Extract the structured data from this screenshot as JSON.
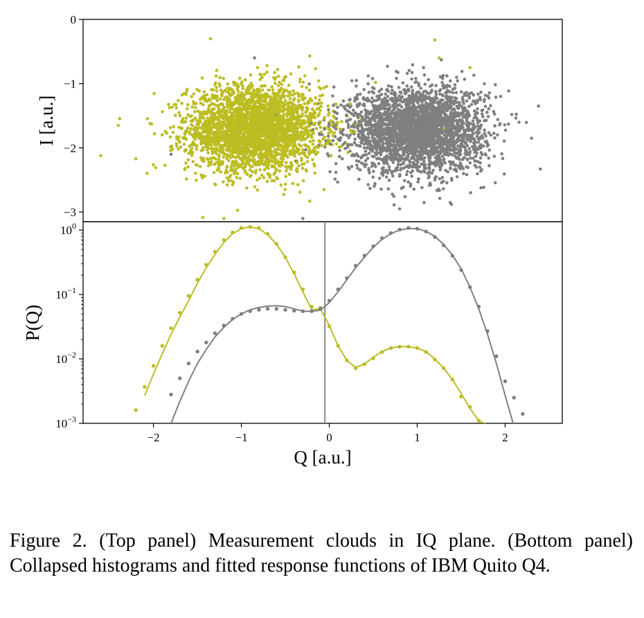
{
  "figure": {
    "caption": "Figure 2. (Top panel) Measurement clouds in IQ plane. (Bottom panel) Collapsed histograms and fitted response functions of IBM Quito Q4."
  },
  "colors": {
    "state0": "#bcbd22",
    "state1": "#7f7f7f",
    "threshold": "#7f7f7f",
    "axes": "#000000"
  },
  "chart_data": [
    {
      "type": "scatter",
      "panel": "top",
      "xlabel": "",
      "ylabel": "I [a.u.]",
      "xlim": [
        -2.8,
        2.65
      ],
      "ylim": [
        -3.15,
        0
      ],
      "y_ticks": [
        0,
        -1,
        -2,
        -3
      ],
      "y_tick_labels": [
        "0",
        "−1",
        "−2",
        "−3"
      ],
      "series": [
        {
          "color": "#bcbd22",
          "center": [
            -0.85,
            -1.7
          ],
          "spread": [
            0.38,
            0.33
          ],
          "n_points": 3000
        },
        {
          "color": "#7f7f7f",
          "center": [
            1.0,
            -1.72
          ],
          "spread": [
            0.38,
            0.33
          ],
          "n_points": 3000
        }
      ],
      "outliers": [
        {
          "color": "#bcbd22",
          "points": [
            [
              -2.6,
              -2.12
            ],
            [
              -2.4,
              -1.65
            ],
            [
              -2.2,
              -2.17
            ],
            [
              -1.35,
              -0.3
            ],
            [
              -1.2,
              -3.1
            ],
            [
              1.2,
              -0.32
            ],
            [
              1.25,
              -0.6
            ],
            [
              1.0,
              -1.55
            ],
            [
              1.3,
              -1.7
            ],
            [
              1.6,
              -0.75
            ]
          ]
        },
        {
          "color": "#7f7f7f",
          "points": [
            [
              2.4,
              -2.33
            ],
            [
              2.38,
              -1.35
            ],
            [
              2.3,
              -1.85
            ],
            [
              -0.3,
              -3.1
            ],
            [
              -0.85,
              -0.6
            ],
            [
              -1.0,
              -2.0
            ],
            [
              -0.6,
              -1.5
            ],
            [
              0.8,
              -2.95
            ],
            [
              1.95,
              -1.2
            ],
            [
              -1.8,
              -2.1
            ]
          ]
        }
      ]
    },
    {
      "type": "line",
      "panel": "bottom",
      "xlabel": "Q [a.u.]",
      "ylabel": "P(Q)",
      "yscale": "log",
      "xlim": [
        -2.8,
        2.65
      ],
      "ylim": [
        0.001,
        1.35
      ],
      "x_ticks": [
        -2,
        -1,
        0,
        1,
        2
      ],
      "x_tick_labels": [
        "−2",
        "−1",
        "0",
        "1",
        "2"
      ],
      "y_ticks": [
        1,
        0.1,
        0.01,
        0.001
      ],
      "y_tick_labels": [
        [
          "10",
          "0"
        ],
        [
          "10",
          "−1"
        ],
        [
          "10",
          "−2"
        ],
        [
          "10",
          "−3"
        ]
      ],
      "threshold_x": -0.05,
      "series": [
        {
          "color": "#bcbd22",
          "fit_x": [
            -2.1,
            -2.0,
            -1.9,
            -1.8,
            -1.7,
            -1.6,
            -1.5,
            -1.4,
            -1.3,
            -1.2,
            -1.1,
            -1.0,
            -0.9,
            -0.8,
            -0.7,
            -0.6,
            -0.5,
            -0.4,
            -0.3,
            -0.2,
            -0.1,
            0.0,
            0.1,
            0.2,
            0.3,
            0.4,
            0.5,
            0.6,
            0.7,
            0.8,
            0.9,
            1.0,
            1.1,
            1.2,
            1.3,
            1.4,
            1.5,
            1.6,
            1.7,
            1.8
          ],
          "fit_y": [
            0.0027,
            0.0058,
            0.012,
            0.024,
            0.045,
            0.08,
            0.15,
            0.26,
            0.42,
            0.64,
            0.88,
            1.05,
            1.12,
            1.05,
            0.85,
            0.6,
            0.38,
            0.21,
            0.11,
            0.058,
            0.06,
            0.033,
            0.016,
            0.0095,
            0.0074,
            0.0083,
            0.0106,
            0.013,
            0.0148,
            0.0155,
            0.0155,
            0.0147,
            0.013,
            0.01,
            0.0072,
            0.0048,
            0.0029,
            0.0017,
            0.0011,
            0.00095
          ],
          "data_x": [
            -2.2,
            -2.1,
            -2.0,
            -1.9,
            -1.8,
            -1.7,
            -1.6,
            -1.5,
            -1.4,
            -1.3,
            -1.2,
            -1.1,
            -1.0,
            -0.9,
            -0.8,
            -0.7,
            -0.6,
            -0.5,
            -0.4,
            -0.3,
            -0.2,
            -0.1,
            0.0,
            0.1,
            0.2,
            0.3,
            0.4,
            0.5,
            0.6,
            0.7,
            0.8,
            0.9,
            1.0,
            1.1,
            1.2,
            1.3,
            1.4,
            1.5,
            1.6,
            1.7,
            1.8
          ],
          "data_y": [
            0.0016,
            0.0037,
            0.0078,
            0.016,
            0.03,
            0.052,
            0.095,
            0.17,
            0.29,
            0.46,
            0.7,
            0.92,
            1.08,
            1.12,
            1.08,
            0.87,
            0.61,
            0.38,
            0.22,
            0.12,
            0.065,
            0.062,
            0.032,
            0.016,
            0.0095,
            0.0072,
            0.0083,
            0.0102,
            0.0128,
            0.0147,
            0.0154,
            0.0155,
            0.0148,
            0.0128,
            0.0098,
            0.0072,
            0.0048,
            0.0026,
            0.0018,
            0.0011,
            0.0009
          ]
        },
        {
          "color": "#7f7f7f",
          "fit_x": [
            -1.8,
            -1.7,
            -1.6,
            -1.5,
            -1.4,
            -1.3,
            -1.2,
            -1.1,
            -1.0,
            -0.9,
            -0.8,
            -0.7,
            -0.6,
            -0.5,
            -0.4,
            -0.3,
            -0.2,
            -0.1,
            0.0,
            0.1,
            0.2,
            0.3,
            0.4,
            0.5,
            0.6,
            0.7,
            0.8,
            0.9,
            1.0,
            1.1,
            1.2,
            1.3,
            1.4,
            1.5,
            1.6,
            1.7,
            1.8,
            1.9,
            2.0,
            2.1
          ],
          "fit_y": [
            0.001,
            0.0022,
            0.0045,
            0.0085,
            0.014,
            0.022,
            0.031,
            0.041,
            0.05,
            0.058,
            0.063,
            0.066,
            0.067,
            0.065,
            0.06,
            0.055,
            0.055,
            0.057,
            0.075,
            0.11,
            0.17,
            0.26,
            0.38,
            0.54,
            0.72,
            0.88,
            1.0,
            1.06,
            1.05,
            0.96,
            0.8,
            0.6,
            0.41,
            0.25,
            0.13,
            0.06,
            0.024,
            0.0085,
            0.0027,
            0.0009
          ],
          "data_x": [
            -1.8,
            -1.7,
            -1.6,
            -1.5,
            -1.4,
            -1.3,
            -1.2,
            -1.1,
            -1.0,
            -0.9,
            -0.8,
            -0.7,
            -0.6,
            -0.5,
            -0.4,
            -0.3,
            -0.2,
            -0.1,
            0.0,
            0.1,
            0.2,
            0.3,
            0.4,
            0.5,
            0.6,
            0.7,
            0.8,
            0.9,
            1.0,
            1.1,
            1.2,
            1.3,
            1.4,
            1.5,
            1.6,
            1.7,
            1.8,
            1.9,
            2.0,
            2.1,
            2.2
          ],
          "data_y": [
            0.0028,
            0.005,
            0.0085,
            0.013,
            0.018,
            0.025,
            0.033,
            0.042,
            0.05,
            0.055,
            0.058,
            0.06,
            0.06,
            0.058,
            0.056,
            0.055,
            0.055,
            0.06,
            0.08,
            0.12,
            0.18,
            0.28,
            0.4,
            0.56,
            0.75,
            0.9,
            1.02,
            1.08,
            1.05,
            0.95,
            0.78,
            0.58,
            0.4,
            0.24,
            0.13,
            0.065,
            0.027,
            0.011,
            0.0045,
            0.0025,
            0.0014
          ]
        }
      ]
    }
  ]
}
